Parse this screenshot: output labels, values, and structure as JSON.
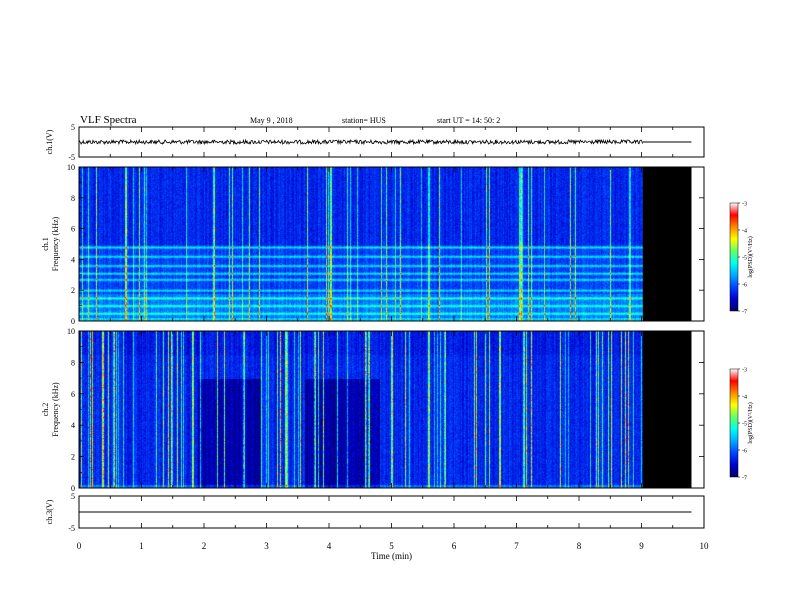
{
  "header": {
    "title": "VLF Spectra",
    "date": "May 9 , 2018",
    "station": "station= HUS",
    "start": "start UT = 14: 50: 2"
  },
  "colors": {
    "background": "#ffffff",
    "no_data": "#000000",
    "colormap": [
      "#000066",
      "#0000cc",
      "#0044ff",
      "#00aaff",
      "#00ffee",
      "#66ff66",
      "#ffff00",
      "#ff8800",
      "#ff0000",
      "#ffffff"
    ]
  },
  "chart_data": [
    {
      "type": "line",
      "panel": "ch1-waveform",
      "ylabel": "ch.1(V)",
      "ylim": [
        -5,
        5
      ],
      "yticks": [
        "5",
        "-5"
      ],
      "x": [
        0,
        9.02
      ],
      "series": [
        {
          "values": [
            0,
            0
          ]
        }
      ],
      "continuation": {
        "x": [
          9.02,
          9.8
        ],
        "values": [
          0,
          0
        ]
      }
    },
    {
      "type": "heatmap",
      "panel": "ch1-spectrogram",
      "ylabel": "ch.1\nFrequency (kHz)",
      "ylim": [
        0,
        10
      ],
      "yticks": [
        "0",
        "2",
        "4",
        "6",
        "8",
        "10"
      ],
      "xlim": [
        0,
        10
      ],
      "data_end_min": 9.02,
      "no_data_range_min": [
        9.02,
        9.8
      ],
      "horizontal_bands_khz": [
        0.5,
        1.0,
        1.5,
        2.0,
        2.7,
        3.1,
        3.6,
        4.2,
        4.8
      ],
      "colorbar": {
        "label": "log(PSD)(V²/Hz)",
        "range": [
          -7,
          -3
        ],
        "ticks": [
          "-3",
          "-4",
          "-5",
          "-6",
          "-7"
        ]
      }
    },
    {
      "type": "heatmap",
      "panel": "ch2-spectrogram",
      "ylabel": "ch.2\nFrequency (kHz)",
      "ylim": [
        0,
        10
      ],
      "yticks": [
        "0",
        "2",
        "4",
        "6",
        "8",
        "10"
      ],
      "xlim": [
        0,
        10
      ],
      "data_end_min": 9.02,
      "no_data_range_min": [
        9.02,
        9.8
      ],
      "colorbar": {
        "label": "log(PSD)(V²/Hz)",
        "range": [
          -7,
          -3
        ],
        "ticks": [
          "-3",
          "-4",
          "-5",
          "-6",
          "-7"
        ]
      }
    },
    {
      "type": "line",
      "panel": "ch3-waveform",
      "ylabel": "ch.3(V)",
      "ylim": [
        -5,
        5
      ],
      "yticks": [
        "5",
        "-5"
      ],
      "x": [
        0,
        9.8
      ],
      "series": [
        {
          "values": [
            0,
            0
          ]
        }
      ]
    }
  ],
  "xaxis": {
    "xlabel": "Time (min)",
    "xlim": [
      0,
      10
    ],
    "ticks": [
      "0",
      "1",
      "2",
      "3",
      "4",
      "5",
      "6",
      "7",
      "8",
      "9",
      "10"
    ]
  }
}
